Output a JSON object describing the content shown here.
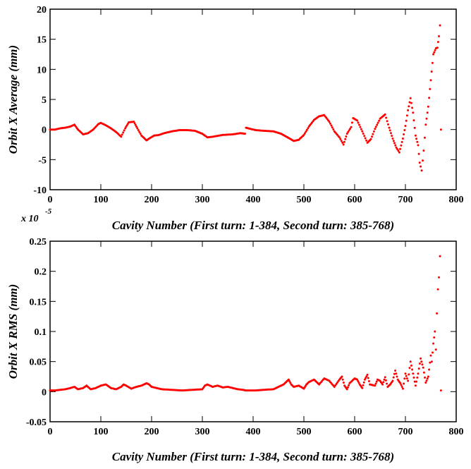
{
  "chart_data": [
    {
      "type": "scatter",
      "title": "",
      "xlabel": "Cavity Number (First turn: 1-384, Second turn: 385-768)",
      "ylabel": "Orbit X Average (mm)",
      "xlim": [
        0,
        800
      ],
      "ylim": [
        -10,
        20
      ],
      "xticks": [
        0,
        100,
        200,
        300,
        400,
        500,
        600,
        700,
        800
      ],
      "yticks": [
        -10,
        -5,
        0,
        5,
        10,
        15,
        20
      ],
      "xtick_labels": [
        "0",
        "100",
        "200",
        "300",
        "400",
        "500",
        "600",
        "700",
        "800"
      ],
      "ytick_labels": [
        "-10",
        "-5",
        "0",
        "5",
        "10",
        "15",
        "20"
      ],
      "marker_color": "#ff0000",
      "series": [
        {
          "name": "Orbit X Average",
          "x": [
            0,
            10,
            20,
            30,
            40,
            48,
            55,
            65,
            75,
            85,
            95,
            100,
            110,
            120,
            130,
            140,
            148,
            155,
            165,
            172,
            180,
            190,
            197,
            205,
            215,
            225,
            240,
            255,
            270,
            285,
            300,
            310,
            320,
            340,
            360,
            375,
            384,
            386,
            395,
            405,
            420,
            440,
            455,
            470,
            480,
            490,
            500,
            510,
            520,
            530,
            540,
            550,
            560,
            570,
            578,
            585,
            593,
            597,
            605,
            615,
            625,
            632,
            640,
            650,
            660,
            668,
            675,
            682,
            688,
            695,
            700,
            705,
            710,
            715,
            720,
            725,
            728,
            732,
            736,
            740,
            745,
            750,
            755,
            760,
            763,
            766,
            768,
            770
          ],
          "y": [
            0,
            0,
            0.2,
            0.3,
            0.5,
            0.8,
            0,
            -0.8,
            -0.6,
            0,
            0.9,
            1.1,
            0.7,
            0.2,
            -0.4,
            -1.2,
            0.2,
            1.2,
            1.3,
            0.2,
            -1,
            -1.8,
            -1.4,
            -1,
            -0.9,
            -0.6,
            -0.3,
            -0.1,
            -0.1,
            -0.2,
            -0.7,
            -1.3,
            -1.2,
            -0.9,
            -0.8,
            -0.6,
            -0.7,
            0.3,
            0.1,
            -0.1,
            -0.2,
            -0.3,
            -0.7,
            -1.4,
            -1.9,
            -1.7,
            -0.9,
            0.5,
            1.6,
            2.2,
            2.4,
            1.3,
            -0.3,
            -1.3,
            -2.5,
            -0.7,
            0.4,
            1.9,
            1.5,
            -0.3,
            -2.2,
            -1.6,
            0.1,
            1.8,
            2.5,
            0.3,
            -1.5,
            -3,
            -3.8,
            -1.5,
            0.6,
            3.2,
            5.2,
            2.8,
            -1,
            -2.6,
            -5.5,
            -6.8,
            -3.5,
            0.8,
            3.8,
            8.2,
            12.5,
            13.5,
            13.6,
            15.5,
            17.3,
            0
          ]
        }
      ]
    },
    {
      "type": "scatter",
      "title": "",
      "xlabel": "Cavity Number (First turn: 1-384, Second turn: 385-768)",
      "ylabel": "Orbit X RMS (mm)",
      "multiplier_label": "x 10",
      "multiplier_exponent": "-5",
      "xlim": [
        0,
        800
      ],
      "ylim": [
        -0.05,
        0.25
      ],
      "xticks": [
        0,
        100,
        200,
        300,
        400,
        500,
        600,
        700,
        800
      ],
      "yticks": [
        -0.05,
        0,
        0.05,
        0.1,
        0.15,
        0.2,
        0.25
      ],
      "xtick_labels": [
        "0",
        "100",
        "200",
        "300",
        "400",
        "500",
        "600",
        "700",
        "800"
      ],
      "ytick_labels": [
        "-0.05",
        "0",
        "0.05",
        "0.1",
        "0.15",
        "0.2",
        "0.25"
      ],
      "marker_color": "#ff0000",
      "series": [
        {
          "name": "Orbit X RMS",
          "x": [
            0,
            10,
            20,
            30,
            40,
            48,
            55,
            65,
            72,
            80,
            90,
            100,
            110,
            120,
            130,
            140,
            145,
            150,
            160,
            170,
            180,
            190,
            195,
            200,
            210,
            220,
            240,
            260,
            280,
            300,
            305,
            310,
            320,
            330,
            340,
            350,
            360,
            370,
            380,
            385,
            395,
            405,
            420,
            440,
            450,
            460,
            465,
            470,
            475,
            480,
            490,
            500,
            505,
            510,
            520,
            525,
            530,
            540,
            550,
            560,
            570,
            575,
            580,
            585,
            590,
            600,
            605,
            610,
            615,
            620,
            625,
            630,
            640,
            645,
            650,
            655,
            660,
            665,
            670,
            675,
            680,
            685,
            690,
            695,
            700,
            705,
            710,
            715,
            720,
            725,
            730,
            735,
            740,
            745,
            750,
            752,
            755,
            758,
            760,
            762,
            764,
            766,
            768,
            770
          ],
          "y": [
            0.002,
            0.002,
            0.003,
            0.004,
            0.006,
            0.008,
            0.004,
            0.006,
            0.01,
            0.004,
            0.006,
            0.01,
            0.012,
            0.006,
            0.004,
            0.008,
            0.012,
            0.01,
            0.005,
            0.008,
            0.01,
            0.014,
            0.012,
            0.008,
            0.006,
            0.004,
            0.003,
            0.002,
            0.003,
            0.004,
            0.01,
            0.012,
            0.008,
            0.01,
            0.007,
            0.008,
            0.006,
            0.004,
            0.003,
            0.002,
            0.002,
            0.002,
            0.003,
            0.004,
            0.008,
            0.012,
            0.016,
            0.02,
            0.012,
            0.008,
            0.01,
            0.005,
            0.012,
            0.016,
            0.02,
            0.016,
            0.012,
            0.022,
            0.018,
            0.008,
            0.02,
            0.025,
            0.01,
            0.004,
            0.014,
            0.022,
            0.02,
            0.012,
            0.006,
            0.02,
            0.028,
            0.012,
            0.01,
            0.02,
            0.018,
            0.012,
            0.024,
            0.008,
            0.012,
            0.018,
            0.035,
            0.02,
            0.014,
            0.005,
            0.03,
            0.018,
            0.05,
            0.03,
            0.01,
            0.03,
            0.055,
            0.04,
            0.015,
            0.025,
            0.06,
            0.05,
            0.08,
            0.1,
            0.07,
            0.13,
            0.17,
            0.19,
            0.225,
            0.002
          ]
        }
      ]
    }
  ]
}
